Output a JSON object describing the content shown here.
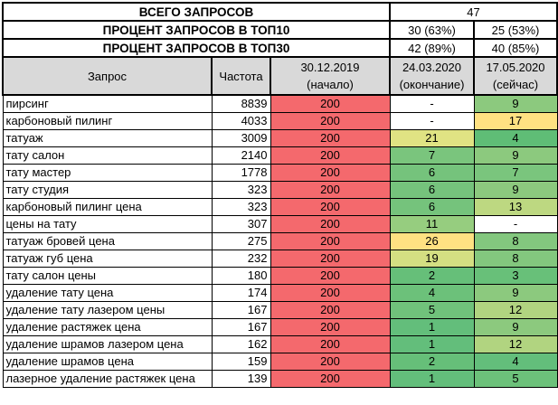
{
  "summary": {
    "total_label": "ВСЕГО ЗАПРОСОВ",
    "total_value": "47",
    "top10_label": "ПРОЦЕНТ ЗАПРОСОВ В ТОП10",
    "top10_end": "30 (63%)",
    "top10_now": "25 (53%)",
    "top30_label": "ПРОЦЕНТ ЗАПРОСОВ В ТОП30",
    "top30_end": "42 (89%)",
    "top30_now": "40 (85%)"
  },
  "header": {
    "query": "Запрос",
    "frequency": "Частота",
    "start_date": "30.12.2019",
    "start_note": "(начало)",
    "end_date": "24.03.2020",
    "end_note": "(окончание)",
    "now_date": "17.05.2020",
    "now_note": "(сейчас)"
  },
  "colors": {
    "header_bg": "#d9d9d9",
    "position_red": "#f4696d",
    "position_green_min": "#63be7b",
    "position_yellow": "#ffe182",
    "grid_border": "#000000"
  },
  "rows": [
    {
      "query": "пирсинг",
      "frequency": "8839",
      "start": {
        "text": "200",
        "bg": "#f4696d"
      },
      "end": {
        "text": "-",
        "bg": "#ffffff"
      },
      "now": {
        "text": "9",
        "bg": "#8cc97e"
      }
    },
    {
      "query": "карбоновый пилинг",
      "frequency": "4033",
      "start": {
        "text": "200",
        "bg": "#f4696d"
      },
      "end": {
        "text": "-",
        "bg": "#ffffff"
      },
      "now": {
        "text": "17",
        "bg": "#ffe182"
      }
    },
    {
      "query": "татуаж",
      "frequency": "3009",
      "start": {
        "text": "200",
        "bg": "#f4696d"
      },
      "end": {
        "text": "21",
        "bg": "#e0e383"
      },
      "now": {
        "text": "4",
        "bg": "#5fbd76"
      }
    },
    {
      "query": "тату салон",
      "frequency": "2140",
      "start": {
        "text": "200",
        "bg": "#f4696d"
      },
      "end": {
        "text": "7",
        "bg": "#7ac57d"
      },
      "now": {
        "text": "9",
        "bg": "#8cc97e"
      }
    },
    {
      "query": "тату мастер",
      "frequency": "1778",
      "start": {
        "text": "200",
        "bg": "#f4696d"
      },
      "end": {
        "text": "6",
        "bg": "#75c37c"
      },
      "now": {
        "text": "7",
        "bg": "#7ac57d"
      }
    },
    {
      "query": "тату студия",
      "frequency": "323",
      "start": {
        "text": "200",
        "bg": "#f4696d"
      },
      "end": {
        "text": "6",
        "bg": "#75c37c"
      },
      "now": {
        "text": "9",
        "bg": "#8cc97e"
      }
    },
    {
      "query": "карбоновый пилинг цена",
      "frequency": "323",
      "start": {
        "text": "200",
        "bg": "#f4696d"
      },
      "end": {
        "text": "6",
        "bg": "#75c37c"
      },
      "now": {
        "text": "13",
        "bg": "#bdd881"
      }
    },
    {
      "query": "цены на тату",
      "frequency": "307",
      "start": {
        "text": "200",
        "bg": "#f4696d"
      },
      "end": {
        "text": "11",
        "bg": "#96cd7f"
      },
      "now": {
        "text": "-",
        "bg": "#ffffff"
      }
    },
    {
      "query": "татуаж бровей цена",
      "frequency": "275",
      "start": {
        "text": "200",
        "bg": "#f4696d"
      },
      "end": {
        "text": "26",
        "bg": "#ffe182"
      },
      "now": {
        "text": "8",
        "bg": "#83c77e"
      }
    },
    {
      "query": "татуаж губ цена",
      "frequency": "232",
      "start": {
        "text": "200",
        "bg": "#f4696d"
      },
      "end": {
        "text": "19",
        "bg": "#d4df82"
      },
      "now": {
        "text": "8",
        "bg": "#83c77e"
      }
    },
    {
      "query": "тату салон цены",
      "frequency": "180",
      "start": {
        "text": "200",
        "bg": "#f4696d"
      },
      "end": {
        "text": "2",
        "bg": "#66bf79"
      },
      "now": {
        "text": "3",
        "bg": "#68c079"
      }
    },
    {
      "query": "удаление тату цена",
      "frequency": "174",
      "start": {
        "text": "200",
        "bg": "#f4696d"
      },
      "end": {
        "text": "4",
        "bg": "#6cc17a"
      },
      "now": {
        "text": "9",
        "bg": "#8cc97e"
      }
    },
    {
      "query": "удаление тату лазером цены",
      "frequency": "167",
      "start": {
        "text": "200",
        "bg": "#f4696d"
      },
      "end": {
        "text": "5",
        "bg": "#70c27b"
      },
      "now": {
        "text": "12",
        "bg": "#b1d480"
      }
    },
    {
      "query": "удаление растяжек цена",
      "frequency": "167",
      "start": {
        "text": "200",
        "bg": "#f4696d"
      },
      "end": {
        "text": "1",
        "bg": "#63be7b"
      },
      "now": {
        "text": "9",
        "bg": "#8cc97e"
      }
    },
    {
      "query": "удаление шрамов лазером цена",
      "frequency": "162",
      "start": {
        "text": "200",
        "bg": "#f4696d"
      },
      "end": {
        "text": "1",
        "bg": "#63be7b"
      },
      "now": {
        "text": "12",
        "bg": "#b1d480"
      }
    },
    {
      "query": "удаление шрамов цена",
      "frequency": "159",
      "start": {
        "text": "200",
        "bg": "#f4696d"
      },
      "end": {
        "text": "2",
        "bg": "#66bf79"
      },
      "now": {
        "text": "4",
        "bg": "#63be7b"
      }
    },
    {
      "query": "лазерное удаление растяжек цена",
      "frequency": "139",
      "start": {
        "text": "200",
        "bg": "#f4696d"
      },
      "end": {
        "text": "1",
        "bg": "#63be7b"
      },
      "now": {
        "text": "5",
        "bg": "#6cc17a"
      }
    }
  ]
}
